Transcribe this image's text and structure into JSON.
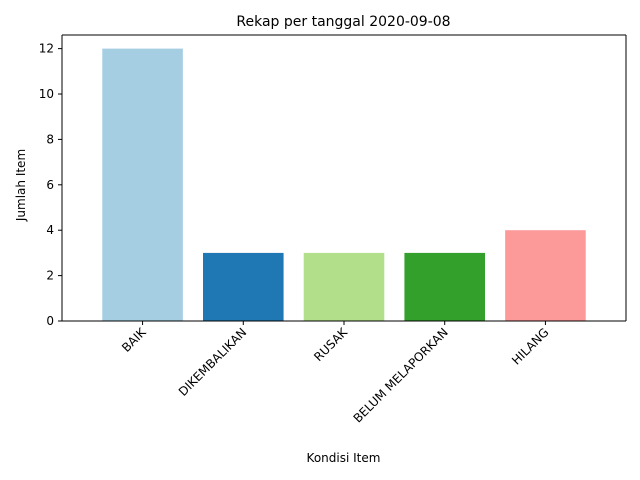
{
  "chart_data": {
    "type": "bar",
    "title": "Rekap per tanggal 2020-09-08",
    "xlabel": "Kondisi Item",
    "ylabel": "Jumlah Item",
    "categories": [
      "BAIK",
      "DIKEMBALIKAN",
      "RUSAK",
      "BELUM MELAPORKAN",
      "HILANG"
    ],
    "values": [
      12,
      3,
      3,
      3,
      4
    ],
    "colors": [
      "#a6cee3",
      "#1f78b4",
      "#b2df8a",
      "#33a02c",
      "#fb9a99"
    ],
    "ylim": [
      0,
      12.6
    ],
    "yticks": [
      0,
      2,
      4,
      6,
      8,
      10,
      12
    ],
    "grid": false,
    "legend": "none"
  }
}
